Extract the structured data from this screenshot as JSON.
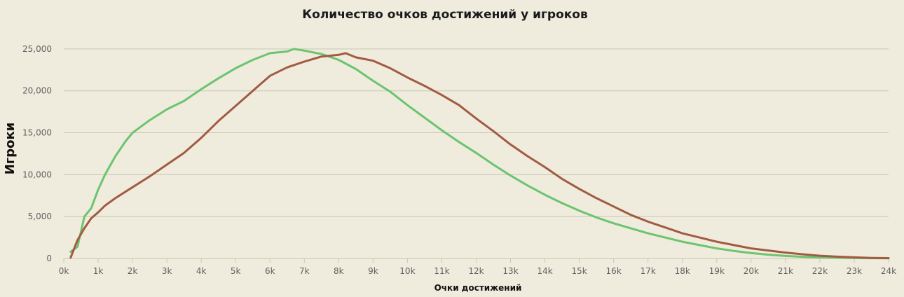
{
  "colors": {
    "background": "#efecde",
    "green": "#6cc46f",
    "brown": "#a25b42"
  },
  "chart_data": {
    "type": "line",
    "title": "Количество очков достижений у игроков",
    "xlabel": "Очки достижений",
    "ylabel": "Игроки",
    "xlim": [
      0,
      24000
    ],
    "ylim": [
      0,
      27000
    ],
    "grid": true,
    "x_ticks": [
      0,
      1000,
      2000,
      3000,
      4000,
      5000,
      6000,
      7000,
      8000,
      9000,
      10000,
      11000,
      12000,
      13000,
      14000,
      15000,
      16000,
      17000,
      18000,
      19000,
      20000,
      21000,
      22000,
      23000,
      24000
    ],
    "x_tick_labels": [
      "0k",
      "1k",
      "2k",
      "3k",
      "4k",
      "5k",
      "6k",
      "7k",
      "8k",
      "9k",
      "10k",
      "11k",
      "12k",
      "13k",
      "14k",
      "15k",
      "16k",
      "17k",
      "18k",
      "19k",
      "20k",
      "21k",
      "22k",
      "23k",
      "24k"
    ],
    "y_ticks": [
      0,
      5000,
      10000,
      15000,
      20000,
      25000
    ],
    "y_tick_labels": [
      "0",
      "5,000",
      "10,000",
      "15,000",
      "20,000",
      "25,000"
    ],
    "series": [
      {
        "color": "#6cc46f",
        "points": [
          [
            200,
            800
          ],
          [
            400,
            1400
          ],
          [
            600,
            5000
          ],
          [
            800,
            6000
          ],
          [
            1000,
            8200
          ],
          [
            1200,
            10000
          ],
          [
            1500,
            12200
          ],
          [
            1800,
            14000
          ],
          [
            2000,
            15000
          ],
          [
            2500,
            16500
          ],
          [
            3000,
            17800
          ],
          [
            3500,
            18800
          ],
          [
            4000,
            20200
          ],
          [
            4500,
            21500
          ],
          [
            5000,
            22700
          ],
          [
            5500,
            23700
          ],
          [
            6000,
            24500
          ],
          [
            6500,
            24700
          ],
          [
            6700,
            25000
          ],
          [
            7000,
            24800
          ],
          [
            7500,
            24400
          ],
          [
            8000,
            23700
          ],
          [
            8500,
            22600
          ],
          [
            9000,
            21200
          ],
          [
            9500,
            19900
          ],
          [
            10000,
            18300
          ],
          [
            10500,
            16800
          ],
          [
            11000,
            15300
          ],
          [
            11500,
            13900
          ],
          [
            12000,
            12600
          ],
          [
            12500,
            11200
          ],
          [
            13000,
            9900
          ],
          [
            13500,
            8700
          ],
          [
            14000,
            7600
          ],
          [
            14500,
            6600
          ],
          [
            15000,
            5700
          ],
          [
            15500,
            4900
          ],
          [
            16000,
            4200
          ],
          [
            16500,
            3600
          ],
          [
            17000,
            3000
          ],
          [
            17500,
            2500
          ],
          [
            18000,
            2000
          ],
          [
            18500,
            1600
          ],
          [
            19000,
            1200
          ],
          [
            19500,
            900
          ],
          [
            20000,
            650
          ],
          [
            20500,
            450
          ],
          [
            21000,
            300
          ],
          [
            21500,
            200
          ],
          [
            22000,
            130
          ],
          [
            22500,
            80
          ],
          [
            23000,
            50
          ],
          [
            23500,
            30
          ],
          [
            24000,
            20
          ]
        ]
      },
      {
        "color": "#a25b42",
        "points": [
          [
            200,
            100
          ],
          [
            400,
            2200
          ],
          [
            600,
            3600
          ],
          [
            800,
            4800
          ],
          [
            1000,
            5500
          ],
          [
            1200,
            6300
          ],
          [
            1500,
            7200
          ],
          [
            2000,
            8500
          ],
          [
            2500,
            9800
          ],
          [
            3000,
            11200
          ],
          [
            3500,
            12600
          ],
          [
            4000,
            14400
          ],
          [
            4500,
            16400
          ],
          [
            5000,
            18200
          ],
          [
            5500,
            20000
          ],
          [
            6000,
            21800
          ],
          [
            6500,
            22800
          ],
          [
            7000,
            23500
          ],
          [
            7500,
            24100
          ],
          [
            8000,
            24300
          ],
          [
            8200,
            24500
          ],
          [
            8500,
            24000
          ],
          [
            9000,
            23600
          ],
          [
            9500,
            22700
          ],
          [
            10000,
            21600
          ],
          [
            10500,
            20600
          ],
          [
            11000,
            19500
          ],
          [
            11500,
            18300
          ],
          [
            12000,
            16700
          ],
          [
            12500,
            15200
          ],
          [
            13000,
            13600
          ],
          [
            13500,
            12200
          ],
          [
            14000,
            10900
          ],
          [
            14500,
            9500
          ],
          [
            15000,
            8300
          ],
          [
            15500,
            7200
          ],
          [
            16000,
            6200
          ],
          [
            16500,
            5200
          ],
          [
            17000,
            4400
          ],
          [
            17500,
            3700
          ],
          [
            18000,
            3000
          ],
          [
            18500,
            2500
          ],
          [
            19000,
            2000
          ],
          [
            19500,
            1600
          ],
          [
            20000,
            1200
          ],
          [
            20500,
            950
          ],
          [
            21000,
            700
          ],
          [
            21500,
            500
          ],
          [
            22000,
            330
          ],
          [
            22500,
            220
          ],
          [
            23000,
            130
          ],
          [
            23500,
            70
          ],
          [
            24000,
            40
          ]
        ]
      }
    ]
  }
}
